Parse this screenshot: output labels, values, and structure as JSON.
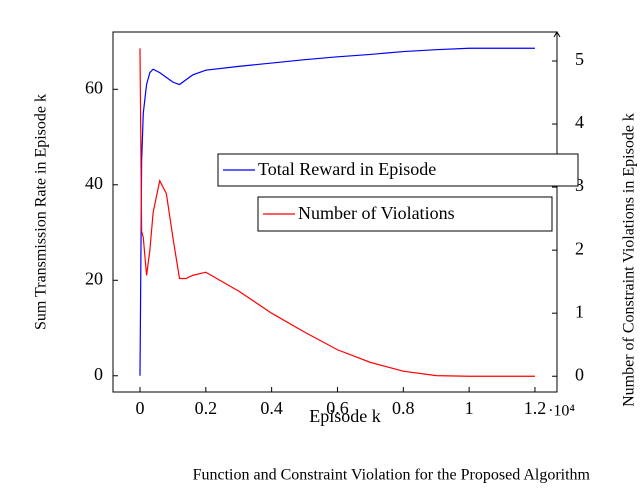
{
  "chart_data": {
    "type": "line",
    "xlabel": "Episode k",
    "ylabel": "Sum Transmission Rate in Episode k",
    "y2label": "Number of Constraint Violations in Episode k",
    "x_multiplier": "·10⁴",
    "caption": "Function and Constraint Violation for the Proposed Algorithm",
    "x": [
      0,
      0.005,
      0.01,
      0.02,
      0.03,
      0.04,
      0.06,
      0.08,
      0.1,
      0.12,
      0.14,
      0.16,
      0.2,
      0.3,
      0.4,
      0.5,
      0.6,
      0.7,
      0.8,
      0.9,
      1.0,
      1.1,
      1.2
    ],
    "series": [
      {
        "name": "Total Reward in Episode",
        "color": "#0000ff",
        "values": [
          0,
          45,
          55,
          61,
          63.5,
          64.2,
          63.5,
          62.5,
          61.5,
          61,
          62,
          63,
          64,
          64.8,
          65.5,
          66.2,
          66.8,
          67.3,
          67.9,
          68.3,
          68.6,
          68.6,
          68.6
        ]
      },
      {
        "name": "Number of Violations",
        "color": "#ff0000",
        "axis": "y2",
        "values": [
          5.2,
          2.3,
          2.2,
          1.6,
          2.0,
          2.6,
          3.1,
          2.9,
          2.2,
          1.55,
          1.55,
          1.6,
          1.65,
          1.35,
          1.0,
          0.7,
          0.42,
          0.22,
          0.08,
          0.01,
          0,
          0,
          0
        ]
      }
    ],
    "xlim": [
      -0.082,
      1.267
    ],
    "xticks": [
      0,
      0.2,
      0.4,
      0.6,
      0.8,
      1,
      1.2
    ],
    "ylim": [
      -3.4,
      72
    ],
    "yticks": [
      0,
      20,
      40,
      60
    ],
    "y2lim": [
      -0.25,
      5.46
    ],
    "y2ticks": [
      0,
      1,
      2,
      3,
      4,
      5
    ]
  }
}
